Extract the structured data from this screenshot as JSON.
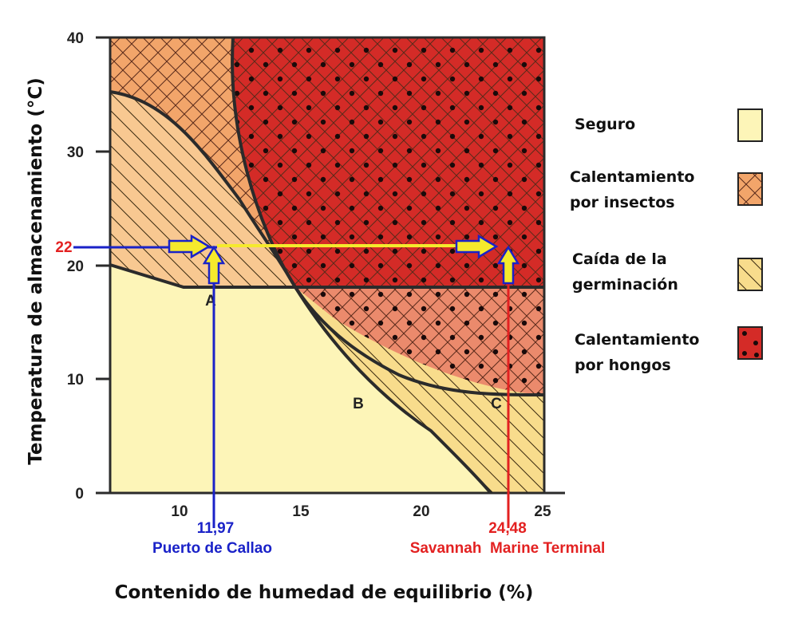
{
  "chart_data": {
    "type": "diagram",
    "ylabel": "Temperatura de almacenamiento (°C)",
    "xlabel": "Contenido de humedad de equilibrio (%)",
    "y_ticks": [
      "0",
      "10",
      "20",
      "30",
      "40"
    ],
    "x_ticks": [
      "10",
      "15",
      "20",
      "25"
    ],
    "xlim": [
      7,
      25
    ],
    "ylim": [
      0,
      40
    ],
    "grid": false,
    "zones": [
      {
        "label": "Seguro",
        "color": "#fdf5b8",
        "pattern": "none"
      },
      {
        "label": "Calentamiento por insectos",
        "color": "#f2a56a",
        "pattern": "crosshatch"
      },
      {
        "label": "Caída de la germinación",
        "color": "#f8dc8c",
        "pattern": "hatch"
      },
      {
        "label": "Calentamiento por hongos",
        "color": "#d42b27",
        "pattern": "dots"
      }
    ],
    "curve_labels": [
      "A",
      "B",
      "C"
    ],
    "storage_temperature": {
      "value": 22,
      "label": "22"
    },
    "markers": [
      {
        "value_label": "11,97",
        "name": "Puerto de Callao",
        "x": 11.97,
        "y": 22,
        "color": "#1a22c8"
      },
      {
        "value_label": "24,48",
        "name": "Savannah  Marine Terminal",
        "x": 24.48,
        "y": 22,
        "color": "#e32121"
      }
    ]
  },
  "legend": {
    "items": [
      {
        "line1": "Seguro",
        "line2": ""
      },
      {
        "line1": "Calentamiento",
        "line2": "por insectos"
      },
      {
        "line1": "Caída de la",
        "line2": "germinación"
      },
      {
        "line1": "Calentamiento",
        "line2": "por hongos"
      }
    ]
  }
}
